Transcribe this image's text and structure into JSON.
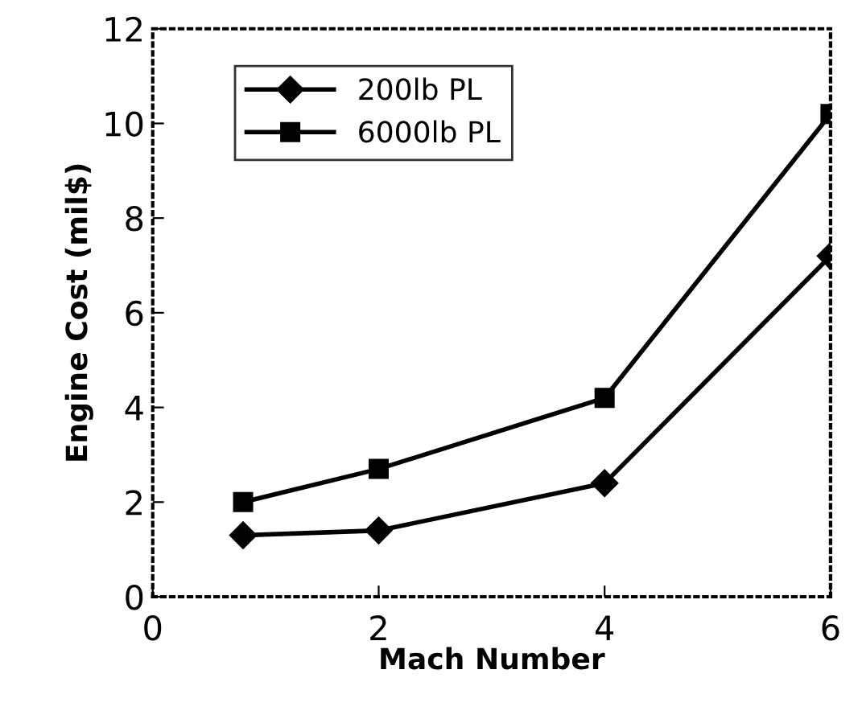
{
  "chart_data": {
    "type": "line",
    "xlabel": "Mach Number",
    "ylabel": "Engine Cost (mil$)",
    "x": [
      0.8,
      2,
      4,
      6
    ],
    "series": [
      {
        "name": "200lb PL",
        "color": "#000000",
        "marker": "diamond",
        "values": [
          1.3,
          1.4,
          2.4,
          7.2
        ]
      },
      {
        "name": "6000lb PL",
        "color": "#000000",
        "marker": "square",
        "values": [
          2.0,
          2.7,
          4.2,
          10.2
        ]
      }
    ],
    "xlim": [
      0,
      6
    ],
    "xticks": [
      0,
      2,
      4,
      6
    ],
    "ylim": [
      0,
      12
    ],
    "yticks": [
      0,
      2,
      4,
      6,
      8,
      10,
      12
    ],
    "grid": false,
    "legend": "top left",
    "line_style": "solid"
  }
}
